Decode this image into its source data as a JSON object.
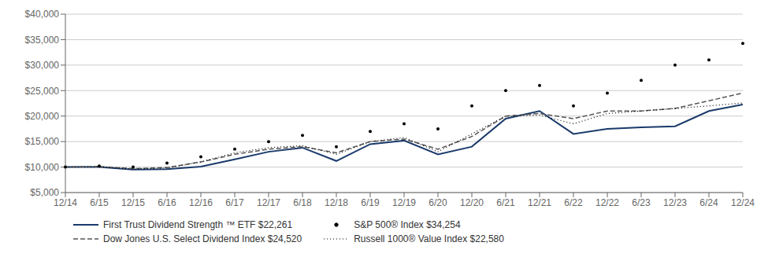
{
  "chart_data": {
    "type": "line",
    "categories": [
      "12/14",
      "6/15",
      "12/15",
      "6/16",
      "12/16",
      "6/17",
      "12/17",
      "6/18",
      "12/18",
      "6/19",
      "12/19",
      "6/20",
      "12/20",
      "6/21",
      "12/21",
      "6/22",
      "12/22",
      "6/23",
      "12/23",
      "6/24",
      "12/24"
    ],
    "series": [
      {
        "name": "First Trust Dividend Strength ™ ETF $22,261",
        "color": "#1a3a6b",
        "line_style": "solid",
        "marker": "none",
        "values": [
          10000,
          10000,
          9500,
          9600,
          10100,
          11500,
          13000,
          13800,
          11200,
          14500,
          15200,
          12500,
          14000,
          19500,
          21000,
          16500,
          17500,
          17800,
          18000,
          21000,
          22261
        ]
      },
      {
        "name": "S&P 500® Index $34,254",
        "color": "#000000",
        "line_style": "none",
        "marker": "point",
        "values": [
          10000,
          10200,
          10000,
          10800,
          12000,
          13500,
          15000,
          16200,
          14000,
          17000,
          18500,
          17500,
          22000,
          25000,
          26000,
          22000,
          24500,
          27000,
          30000,
          31000,
          34254
        ]
      },
      {
        "name": "Dow Jones U.S. Select Dividend Index $24,520",
        "color": "#555555",
        "line_style": "dashed",
        "marker": "none",
        "values": [
          10000,
          10100,
          9700,
          9900,
          11000,
          12500,
          13500,
          14000,
          12800,
          15000,
          15500,
          13500,
          16000,
          20000,
          20500,
          19500,
          21000,
          21000,
          21500,
          23000,
          24520
        ]
      },
      {
        "name": "Russell 1000® Value Index $22,580",
        "color": "#000000",
        "line_style": "dotted",
        "marker": "none",
        "values": [
          10000,
          10100,
          9600,
          9800,
          11000,
          12800,
          13800,
          14200,
          12500,
          15000,
          15800,
          13000,
          16500,
          20000,
          20200,
          18500,
          20500,
          21000,
          21500,
          22000,
          22580
        ]
      }
    ],
    "ylim": [
      5000,
      40000
    ],
    "yticks": [
      {
        "value": 5000,
        "label": "$5,000"
      },
      {
        "value": 10000,
        "label": "$10,000"
      },
      {
        "value": 15000,
        "label": "$15,000"
      },
      {
        "value": 20000,
        "label": "$20,000"
      },
      {
        "value": 25000,
        "label": "$25,000"
      },
      {
        "value": 30000,
        "label": "$30,000"
      },
      {
        "value": 35000,
        "label": "$35,000"
      },
      {
        "value": 40000,
        "label": "$40,000"
      }
    ],
    "grid": true,
    "legend": "bottom"
  }
}
